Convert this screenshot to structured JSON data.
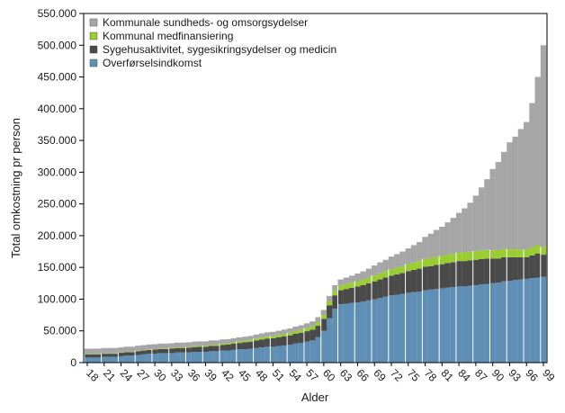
{
  "chart_data": {
    "type": "bar",
    "stacked": true,
    "xlabel": "Alder",
    "ylabel": "Total omkostning pr person",
    "ylim": [
      0,
      550000
    ],
    "yticks": [
      "0",
      "50.000",
      "100.000",
      "150.000",
      "200.000",
      "250.000",
      "300.000",
      "350.000",
      "400.000",
      "450.000",
      "500.000",
      "550.000"
    ],
    "xtick_labels": [
      "18",
      "21",
      "24",
      "27",
      "30",
      "33",
      "36",
      "39",
      "42",
      "45",
      "48",
      "51",
      "54",
      "57",
      "60",
      "63",
      "66",
      "69",
      "72",
      "75",
      "78",
      "81",
      "84",
      "87",
      "90",
      "93",
      "96",
      "99"
    ],
    "x": [
      18,
      19,
      20,
      21,
      22,
      23,
      24,
      25,
      26,
      27,
      28,
      29,
      30,
      31,
      32,
      33,
      34,
      35,
      36,
      37,
      38,
      39,
      40,
      41,
      42,
      43,
      44,
      45,
      46,
      47,
      48,
      49,
      50,
      51,
      52,
      53,
      54,
      55,
      56,
      57,
      58,
      59,
      60,
      61,
      62,
      63,
      64,
      65,
      66,
      67,
      68,
      69,
      70,
      71,
      72,
      73,
      74,
      75,
      76,
      77,
      78,
      79,
      80,
      81,
      82,
      83,
      84,
      85,
      86,
      87,
      88,
      89,
      90,
      91,
      92,
      93,
      94,
      95,
      96,
      97,
      98,
      99
    ],
    "legend_position": "top-left",
    "grid": false,
    "series": [
      {
        "name": "Overførselsindkomst",
        "color": "#5f8fb4",
        "values": [
          8000,
          8000,
          8000,
          9000,
          9000,
          9000,
          10000,
          11000,
          11000,
          12000,
          13000,
          14000,
          14000,
          15000,
          15000,
          15000,
          16000,
          16000,
          16000,
          17000,
          17000,
          17000,
          18000,
          18000,
          19000,
          19000,
          20000,
          21000,
          21000,
          22000,
          23000,
          24000,
          25000,
          25000,
          26000,
          27000,
          28000,
          30000,
          31000,
          33000,
          35000,
          40000,
          50000,
          70000,
          85000,
          92000,
          93000,
          94000,
          95000,
          96000,
          98000,
          100000,
          102000,
          104000,
          106000,
          107000,
          108000,
          110000,
          111000,
          112000,
          114000,
          115000,
          116000,
          117000,
          118000,
          119000,
          120000,
          120000,
          121000,
          122000,
          123000,
          124000,
          125000,
          126000,
          128000,
          129000,
          130000,
          131000,
          132000,
          133000,
          134000,
          135000
        ]
      },
      {
        "name": "Sygehusaktivitet, sygesikringsydelser og medicin",
        "color": "#4a4a4a",
        "values": [
          5000,
          5000,
          5000,
          5000,
          5000,
          5000,
          5500,
          5500,
          5500,
          6000,
          6000,
          6000,
          6500,
          6500,
          6500,
          7000,
          7000,
          7000,
          7500,
          7500,
          8000,
          8000,
          8500,
          8500,
          9000,
          9500,
          10000,
          10000,
          11000,
          11000,
          12000,
          12500,
          13000,
          13500,
          14000,
          14500,
          15000,
          15500,
          16000,
          16500,
          17000,
          18000,
          19000,
          20000,
          21000,
          22000,
          23000,
          24000,
          25000,
          26000,
          27000,
          28000,
          29000,
          30000,
          31000,
          32000,
          33000,
          34000,
          35000,
          36000,
          37000,
          37000,
          38000,
          38000,
          39000,
          39000,
          40000,
          40000,
          40000,
          40000,
          40000,
          40000,
          39000,
          38000,
          38000,
          37000,
          36000,
          35000,
          34000,
          36000,
          38000,
          35000
        ]
      },
      {
        "name": "Kommunal medfinansiering",
        "color": "#9acd32",
        "values": [
          500,
          500,
          500,
          500,
          500,
          500,
          500,
          600,
          600,
          700,
          700,
          800,
          800,
          900,
          900,
          1000,
          1000,
          1100,
          1200,
          1300,
          1400,
          1500,
          1600,
          1700,
          1800,
          1900,
          2000,
          2200,
          2400,
          2600,
          2800,
          3000,
          3200,
          3400,
          3600,
          3800,
          4000,
          4300,
          4600,
          5000,
          5300,
          5700,
          6000,
          6500,
          7000,
          7300,
          7600,
          8000,
          8300,
          8600,
          9000,
          9300,
          9600,
          10000,
          10300,
          10600,
          11000,
          11300,
          11600,
          12000,
          12300,
          12600,
          12800,
          13000,
          13200,
          13400,
          13500,
          13600,
          13700,
          13700,
          13700,
          13600,
          13500,
          13300,
          13000,
          12800,
          12500,
          12200,
          12000,
          12500,
          13000,
          12000
        ]
      },
      {
        "name": "Kommunale sundheds- og omsorgsydelser",
        "color": "#a6a6a6",
        "values": [
          8500,
          8500,
          8500,
          8500,
          8500,
          8500,
          8000,
          8000,
          8000,
          8000,
          7800,
          7700,
          7700,
          7600,
          7600,
          7500,
          7500,
          7400,
          7300,
          7200,
          7100,
          7000,
          6900,
          6800,
          6700,
          6600,
          6500,
          6500,
          6400,
          6400,
          6400,
          6500,
          6500,
          6600,
          6600,
          6700,
          6800,
          7000,
          7200,
          7400,
          7600,
          7900,
          8000,
          8500,
          9000,
          9700,
          10400,
          11000,
          12000,
          13000,
          14000,
          15700,
          17400,
          18000,
          19700,
          21400,
          23000,
          24700,
          27400,
          30000,
          34700,
          38400,
          42200,
          46000,
          50800,
          56600,
          62500,
          69400,
          77300,
          87300,
          99300,
          111400,
          127500,
          138700,
          153000,
          168200,
          177500,
          189800,
          201000,
          227500,
          265000,
          318000
        ]
      }
    ]
  }
}
